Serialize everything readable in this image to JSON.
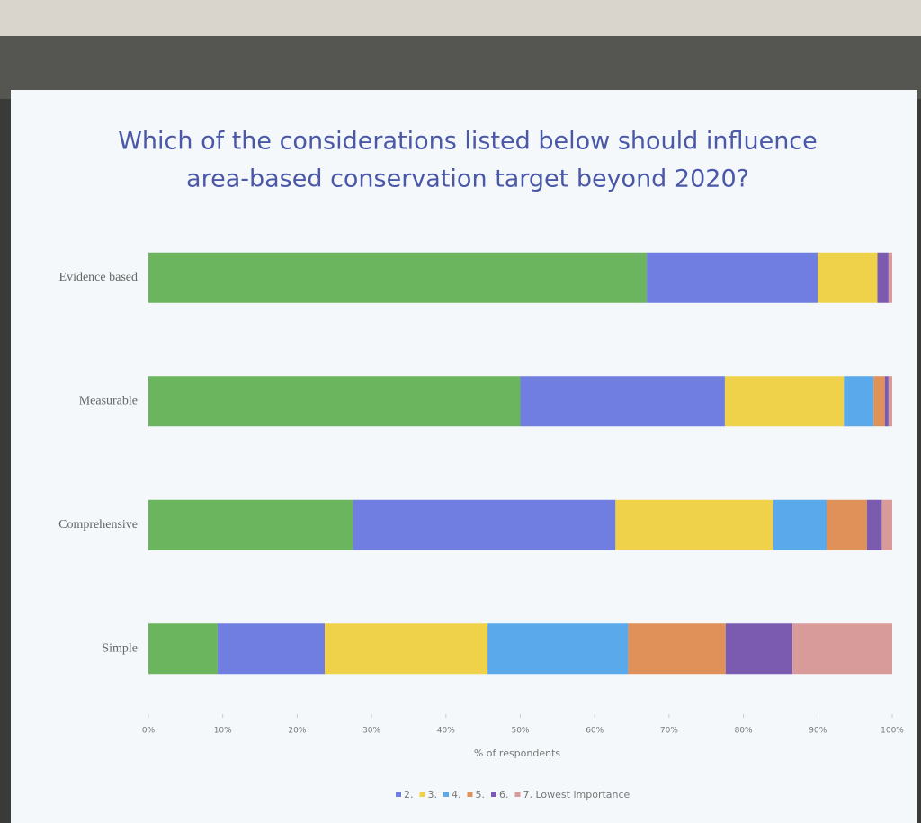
{
  "chart_data": {
    "type": "stacked_bar_horizontal",
    "title": [
      "Which of the considerations listed below should influence",
      "area-based conservation target beyond 2020?"
    ],
    "categories": [
      "Evidence based",
      "Measurable",
      "Comprehensive",
      "Simple"
    ],
    "series": [
      {
        "color": "#6ab55e",
        "values": [
          67,
          50,
          27.5,
          9.3
        ]
      },
      {
        "name": "2.",
        "color": "#6f7ee0",
        "values": [
          23,
          27.5,
          35.3,
          14.4
        ]
      },
      {
        "name": "3.",
        "color": "#f0d24a",
        "values": [
          8,
          16,
          21.2,
          21.9
        ]
      },
      {
        "name": "4.",
        "color": "#5aa9ea",
        "values": [
          0,
          4,
          7.2,
          18.9
        ]
      },
      {
        "name": "5.",
        "color": "#e0915a",
        "values": [
          0,
          1.5,
          5.4,
          13.1
        ]
      },
      {
        "name": "6.",
        "color": "#7a5bb0",
        "values": [
          1.5,
          0.5,
          2,
          9
        ]
      },
      {
        "name": "7. Lowest importance",
        "color": "#d99a9a",
        "values": [
          0.5,
          0.5,
          1.4,
          13.4
        ]
      }
    ],
    "xlim": [
      0,
      100
    ],
    "xticks": [
      {
        "value": 0,
        "label": "0%"
      },
      {
        "value": 10,
        "label": "10%"
      },
      {
        "value": 20,
        "label": "20%"
      },
      {
        "value": 30,
        "label": "30%"
      },
      {
        "value": 40,
        "label": "40%"
      },
      {
        "value": 50,
        "label": "50%"
      },
      {
        "value": 60,
        "label": "60%"
      },
      {
        "value": 70,
        "label": "70%"
      },
      {
        "value": 80,
        "label": "80%"
      },
      {
        "value": 90,
        "label": "90%"
      },
      {
        "value": 100,
        "label": "100%"
      }
    ],
    "xlabel": "% of respondents"
  }
}
